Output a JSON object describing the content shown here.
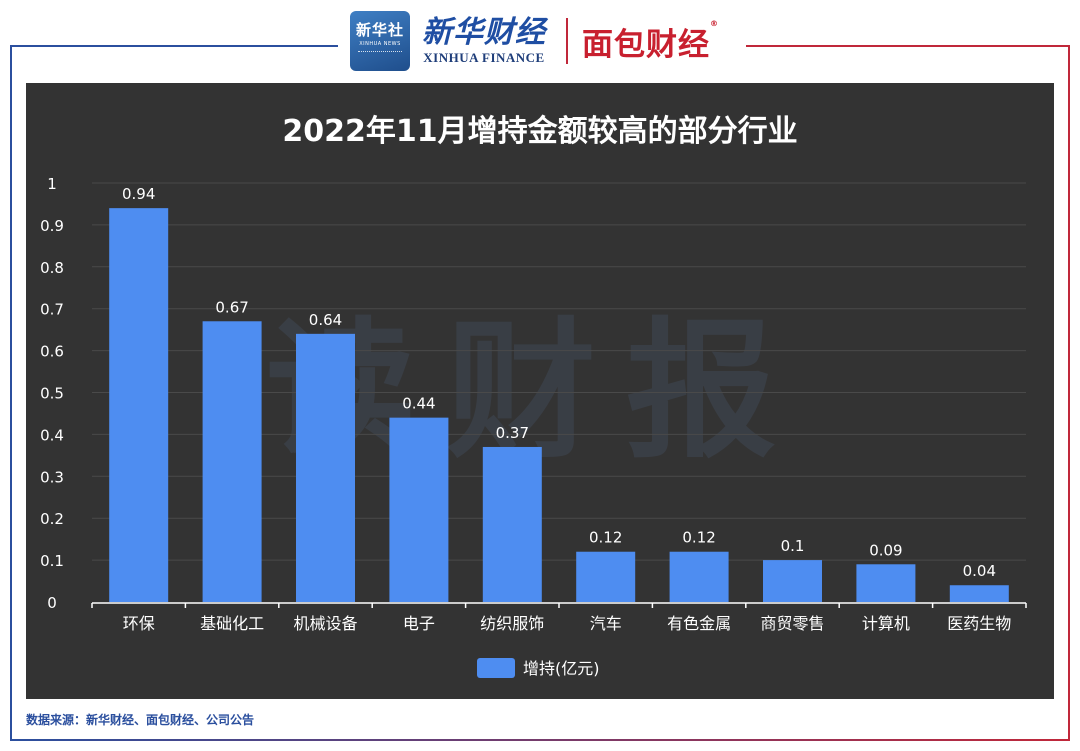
{
  "header": {
    "xinhua_badge_cn": "新华社",
    "xinhua_badge_en": "XINHUA NEWS",
    "xinhua_finance_cn": "新华财经",
    "xinhua_finance_en": "XINHUA FINANCE",
    "mianbao_logo": "面包财经"
  },
  "watermark": "读财报",
  "chart_data": {
    "type": "bar",
    "title": "2022年11月增持金额较高的部分行业",
    "categories": [
      "环保",
      "基础化工",
      "机械设备",
      "电子",
      "纺织服饰",
      "汽车",
      "有色金属",
      "商贸零售",
      "计算机",
      "医药生物"
    ],
    "series": [
      {
        "name": "增持(亿元)",
        "values": [
          0.94,
          0.67,
          0.64,
          0.44,
          0.37,
          0.12,
          0.12,
          0.1,
          0.09,
          0.04
        ]
      }
    ],
    "value_labels": [
      "0.94",
      "0.67",
      "0.64",
      "0.44",
      "0.37",
      "0.12",
      "0.12",
      "0.1",
      "0.09",
      "0.04"
    ],
    "yticks": [
      "0",
      "0.1",
      "0.2",
      "0.3",
      "0.4",
      "0.5",
      "0.6",
      "0.7",
      "0.8",
      "0.9",
      "1"
    ],
    "ylim": [
      0,
      1
    ],
    "grid": true,
    "legend_position": "bottom",
    "bar_color": "#4e8df1",
    "background": "#333333"
  },
  "footer": {
    "source": "数据来源：新华财经、面包财经、公司公告"
  }
}
